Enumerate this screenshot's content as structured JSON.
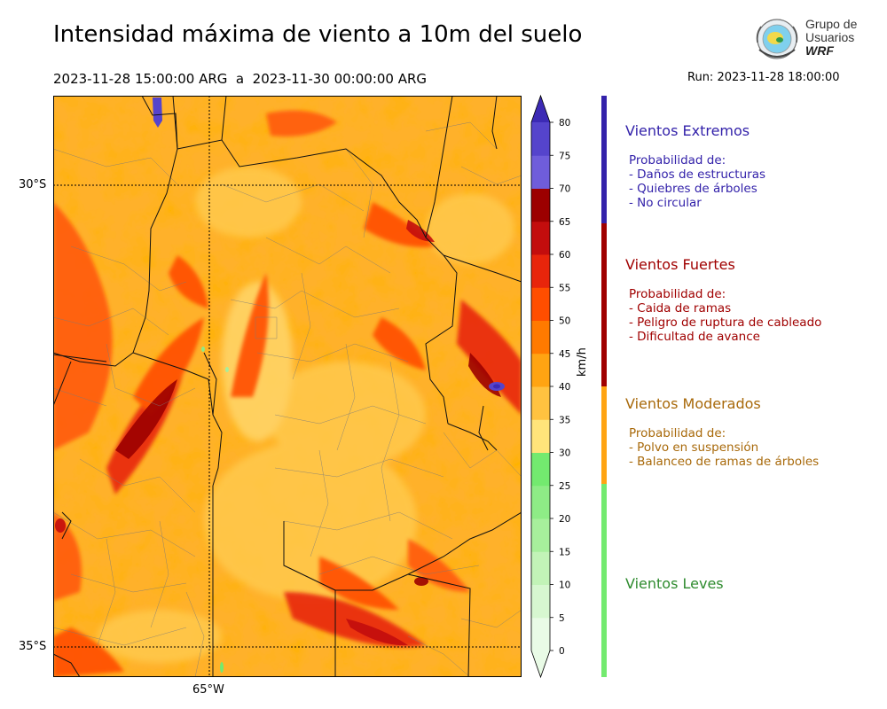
{
  "header": {
    "title": "Intensidad máxima de viento a 10m del suelo",
    "period": "2023-11-28 15:00:00 ARG  a  2023-11-30 00:00:00 ARG",
    "run": "Run: 2023-11-28 18:00:00"
  },
  "logo": {
    "line1": "Grupo de",
    "line2": "Usuarios",
    "line3": "WRF"
  },
  "map": {
    "lat_labels": [
      "30°S",
      "35°S"
    ],
    "lon_labels": [
      "65°W"
    ],
    "colors": {
      "water": "#4a3dbd",
      "land_base": "#ffb933"
    }
  },
  "colorbar": {
    "unit": "km/h",
    "ticks": [
      "0",
      "5",
      "10",
      "15",
      "20",
      "25",
      "30",
      "35",
      "40",
      "45",
      "50",
      "55",
      "60",
      "65",
      "70",
      "75",
      "80"
    ],
    "colors": [
      "#e9fbe6",
      "#d7f7d0",
      "#c2f3b7",
      "#a7ef9c",
      "#8eec86",
      "#73ea6f",
      "#ffe47a",
      "#ffc240",
      "#ffa412",
      "#ff7a00",
      "#ff4e00",
      "#e8250b",
      "#c30d0d",
      "#9c0000",
      "#6f5ddb",
      "#5544cc",
      "#3c2ab5"
    ]
  },
  "categories": [
    {
      "title": "Vientos Extremos",
      "color": "#3322aa",
      "lines": [
        "Probabilidad de:",
        "- Daños de estructuras",
        "- Quiebres de árboles",
        "- No circular"
      ]
    },
    {
      "title": "Vientos Fuertes",
      "color": "#a00000",
      "lines": [
        "Probabilidad de:",
        "- Caida de ramas",
        "- Peligro de ruptura de cableado",
        "- Dificultad de avance"
      ]
    },
    {
      "title": "Vientos Moderados",
      "color": "#a8690a",
      "lines": [
        "Probabilidad de:",
        "- Polvo en suspensión",
        "- Balanceo de ramas de árboles"
      ]
    },
    {
      "title": "Vientos Leves",
      "color": "#2e8b2e",
      "lines": []
    }
  ]
}
